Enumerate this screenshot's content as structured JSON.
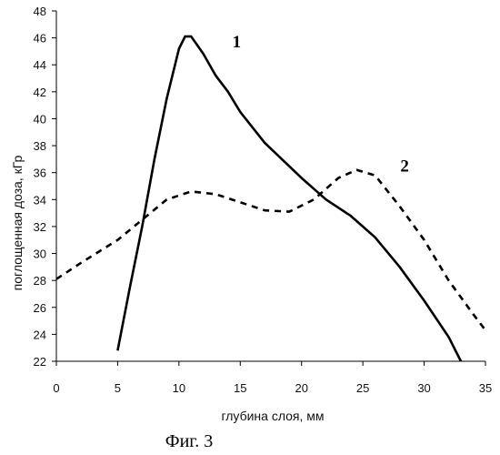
{
  "chart_data": {
    "type": "line",
    "xlabel": "глубина слоя, мм",
    "ylabel": "поглощенная доза, кГр",
    "caption": "Фиг. 3",
    "xlim": [
      0,
      35
    ],
    "ylim": [
      22,
      48
    ],
    "x_ticks": [
      "0",
      "5",
      "10",
      "15",
      "20",
      "25",
      "30",
      "35"
    ],
    "y_ticks": [
      "22",
      "24",
      "26",
      "28",
      "30",
      "32",
      "34",
      "36",
      "38",
      "40",
      "42",
      "44",
      "46",
      "48"
    ],
    "grid": false,
    "series": [
      {
        "name": "1",
        "style": "solid",
        "color": "#000000",
        "points": [
          [
            5,
            22.8
          ],
          [
            6,
            27.5
          ],
          [
            7,
            32
          ],
          [
            8,
            37
          ],
          [
            9,
            41.5
          ],
          [
            10,
            45.2
          ],
          [
            10.5,
            46.1
          ],
          [
            11,
            46.1
          ],
          [
            12,
            44.8
          ],
          [
            13,
            43.2
          ],
          [
            14,
            42
          ],
          [
            15,
            40.5
          ],
          [
            17,
            38.2
          ],
          [
            20,
            35.6
          ],
          [
            22,
            34
          ],
          [
            24,
            32.8
          ],
          [
            26,
            31.2
          ],
          [
            28,
            29
          ],
          [
            30,
            26.5
          ],
          [
            32,
            23.8
          ],
          [
            33,
            22
          ]
        ]
      },
      {
        "name": "2",
        "style": "dashed",
        "color": "#000000",
        "points": [
          [
            0,
            28.1
          ],
          [
            2,
            29.3
          ],
          [
            5,
            31
          ],
          [
            7,
            32.5
          ],
          [
            9,
            34
          ],
          [
            11,
            34.6
          ],
          [
            13,
            34.4
          ],
          [
            15,
            33.8
          ],
          [
            17,
            33.2
          ],
          [
            19,
            33.1
          ],
          [
            21,
            34
          ],
          [
            23,
            35.6
          ],
          [
            24.5,
            36.2
          ],
          [
            26,
            35.8
          ],
          [
            28,
            33.5
          ],
          [
            30,
            31
          ],
          [
            32,
            28
          ],
          [
            34,
            25.5
          ],
          [
            35,
            24.3
          ]
        ]
      }
    ]
  }
}
